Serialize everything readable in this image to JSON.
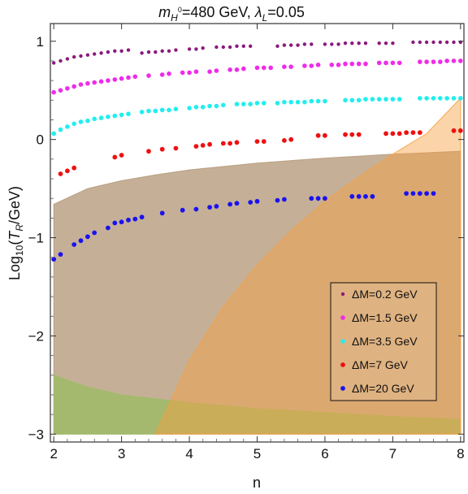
{
  "chart_data": {
    "type": "scatter",
    "title_parts": {
      "m": "m",
      "sub": "H",
      "sup": "0",
      "mid": "=480 GeV, ",
      "lambda": "λ",
      "lsub": "L",
      "end": "=0.05"
    },
    "xlabel": "n",
    "ylabel_parts": {
      "pre": "Log",
      "sub": "10",
      "open": "(",
      "t": "T",
      "tsub": "R",
      "end": "/GeV)"
    },
    "xlim": [
      1.95,
      8.05
    ],
    "ylim": [
      -3.08,
      1.18
    ],
    "xticks": [
      2,
      3,
      4,
      5,
      6,
      7,
      8
    ],
    "yticks": [
      -3,
      -2,
      -1,
      0,
      1
    ],
    "ytick_labels": [
      "−3",
      "−2",
      "−1",
      "0",
      "1"
    ],
    "grid": false,
    "legend_position": "lower-right",
    "regions": [
      {
        "name": "brown band",
        "color": "#b59a7a",
        "opacity": 0.78,
        "upper": [
          [
            2.0,
            -0.66
          ],
          [
            2.5,
            -0.5
          ],
          [
            3.0,
            -0.42
          ],
          [
            3.5,
            -0.36
          ],
          [
            4.0,
            -0.31
          ],
          [
            5.0,
            -0.24
          ],
          [
            6.0,
            -0.19
          ],
          [
            7.0,
            -0.15
          ],
          [
            8.0,
            -0.12
          ]
        ],
        "lower": [
          [
            2.0,
            -3.0
          ],
          [
            8.0,
            -3.0
          ]
        ]
      },
      {
        "name": "green band",
        "color": "#9fbb66",
        "opacity": 0.85,
        "upper": [
          [
            2.0,
            -2.4
          ],
          [
            2.5,
            -2.52
          ],
          [
            3.0,
            -2.6
          ],
          [
            4.0,
            -2.68
          ],
          [
            5.0,
            -2.74
          ],
          [
            6.0,
            -2.78
          ],
          [
            7.0,
            -2.82
          ],
          [
            8.0,
            -2.85
          ]
        ],
        "lower": [
          [
            2.0,
            -3.0
          ],
          [
            8.0,
            -3.0
          ]
        ]
      },
      {
        "name": "orange band",
        "color": "#f7a040",
        "opacity": 0.45,
        "upper": [
          [
            3.5,
            -3.0
          ],
          [
            4.0,
            -2.25
          ],
          [
            4.5,
            -1.7
          ],
          [
            5.0,
            -1.28
          ],
          [
            5.5,
            -0.93
          ],
          [
            6.0,
            -0.63
          ],
          [
            6.5,
            -0.38
          ],
          [
            7.0,
            -0.15
          ],
          [
            7.5,
            0.06
          ],
          [
            8.0,
            0.42
          ]
        ],
        "lower": [
          [
            3.5,
            -3.0
          ],
          [
            8.0,
            -3.0
          ]
        ]
      }
    ],
    "series": [
      {
        "name": "ΔM=0.2 GeV",
        "color": "#8b1a7c",
        "r": 2.2,
        "points": [
          [
            2.0,
            0.78
          ],
          [
            2.1,
            0.8
          ],
          [
            2.2,
            0.82
          ],
          [
            2.3,
            0.84
          ],
          [
            2.4,
            0.85
          ],
          [
            2.5,
            0.86
          ],
          [
            2.6,
            0.87
          ],
          [
            2.7,
            0.88
          ],
          [
            2.8,
            0.89
          ],
          [
            2.9,
            0.9
          ],
          [
            3.0,
            0.9
          ],
          [
            3.1,
            0.91
          ],
          [
            3.3,
            0.88
          ],
          [
            3.4,
            0.89
          ],
          [
            3.5,
            0.89
          ],
          [
            3.6,
            0.9
          ],
          [
            3.7,
            0.9
          ],
          [
            3.8,
            0.91
          ],
          [
            4.0,
            0.92
          ],
          [
            4.1,
            0.92
          ],
          [
            4.2,
            0.93
          ],
          [
            4.4,
            0.94
          ],
          [
            4.5,
            0.94
          ],
          [
            4.6,
            0.94
          ],
          [
            4.7,
            0.95
          ],
          [
            4.8,
            0.95
          ],
          [
            4.9,
            0.95
          ],
          [
            5.3,
            0.95
          ],
          [
            5.4,
            0.96
          ],
          [
            5.5,
            0.96
          ],
          [
            5.6,
            0.96
          ],
          [
            5.7,
            0.97
          ],
          [
            5.8,
            0.97
          ],
          [
            6.0,
            0.97
          ],
          [
            6.1,
            0.97
          ],
          [
            6.2,
            0.97
          ],
          [
            6.3,
            0.98
          ],
          [
            6.4,
            0.98
          ],
          [
            6.5,
            0.98
          ],
          [
            6.6,
            0.98
          ],
          [
            6.8,
            0.98
          ],
          [
            6.9,
            0.98
          ],
          [
            7.0,
            0.98
          ],
          [
            7.3,
            0.99
          ],
          [
            7.4,
            0.99
          ],
          [
            7.5,
            0.99
          ],
          [
            7.6,
            0.99
          ],
          [
            7.7,
            0.99
          ],
          [
            7.8,
            0.99
          ],
          [
            7.9,
            0.99
          ],
          [
            8.0,
            0.99
          ]
        ]
      },
      {
        "name": "ΔM=1.5 GeV",
        "color": "#ee2ce8",
        "r": 2.8,
        "points": [
          [
            2.0,
            0.48
          ],
          [
            2.1,
            0.5
          ],
          [
            2.2,
            0.52
          ],
          [
            2.3,
            0.54
          ],
          [
            2.4,
            0.56
          ],
          [
            2.5,
            0.57
          ],
          [
            2.6,
            0.58
          ],
          [
            2.7,
            0.59
          ],
          [
            2.8,
            0.6
          ],
          [
            2.9,
            0.61
          ],
          [
            3.0,
            0.62
          ],
          [
            3.1,
            0.63
          ],
          [
            3.2,
            0.64
          ],
          [
            3.4,
            0.65
          ],
          [
            3.6,
            0.66
          ],
          [
            3.7,
            0.67
          ],
          [
            3.9,
            0.68
          ],
          [
            4.0,
            0.68
          ],
          [
            4.1,
            0.69
          ],
          [
            4.3,
            0.69
          ],
          [
            4.4,
            0.7
          ],
          [
            4.6,
            0.71
          ],
          [
            4.7,
            0.71
          ],
          [
            4.8,
            0.72
          ],
          [
            5.0,
            0.73
          ],
          [
            5.1,
            0.73
          ],
          [
            5.2,
            0.73
          ],
          [
            5.4,
            0.74
          ],
          [
            5.5,
            0.74
          ],
          [
            5.7,
            0.75
          ],
          [
            5.8,
            0.75
          ],
          [
            5.9,
            0.76
          ],
          [
            6.1,
            0.76
          ],
          [
            6.2,
            0.76
          ],
          [
            6.3,
            0.77
          ],
          [
            6.4,
            0.77
          ],
          [
            6.5,
            0.77
          ],
          [
            6.6,
            0.77
          ],
          [
            6.8,
            0.78
          ],
          [
            6.9,
            0.78
          ],
          [
            7.0,
            0.78
          ],
          [
            7.1,
            0.78
          ],
          [
            7.4,
            0.79
          ],
          [
            7.5,
            0.79
          ],
          [
            7.6,
            0.79
          ],
          [
            7.7,
            0.79
          ],
          [
            7.8,
            0.8
          ],
          [
            7.9,
            0.8
          ],
          [
            8.0,
            0.8
          ]
        ]
      },
      {
        "name": "ΔM=3.5 GeV",
        "color": "#22eeee",
        "r": 2.8,
        "points": [
          [
            2.0,
            0.06
          ],
          [
            2.1,
            0.1
          ],
          [
            2.2,
            0.13
          ],
          [
            2.3,
            0.16
          ],
          [
            2.4,
            0.18
          ],
          [
            2.5,
            0.19
          ],
          [
            2.6,
            0.21
          ],
          [
            2.7,
            0.22
          ],
          [
            2.8,
            0.23
          ],
          [
            2.9,
            0.24
          ],
          [
            3.0,
            0.25
          ],
          [
            3.1,
            0.26
          ],
          [
            3.3,
            0.28
          ],
          [
            3.4,
            0.29
          ],
          [
            3.5,
            0.29
          ],
          [
            3.6,
            0.3
          ],
          [
            3.7,
            0.3
          ],
          [
            3.8,
            0.31
          ],
          [
            4.0,
            0.32
          ],
          [
            4.1,
            0.33
          ],
          [
            4.2,
            0.33
          ],
          [
            4.3,
            0.34
          ],
          [
            4.4,
            0.34
          ],
          [
            4.5,
            0.35
          ],
          [
            4.7,
            0.36
          ],
          [
            4.8,
            0.36
          ],
          [
            4.9,
            0.36
          ],
          [
            5.0,
            0.37
          ],
          [
            5.1,
            0.37
          ],
          [
            5.3,
            0.37
          ],
          [
            5.4,
            0.38
          ],
          [
            5.5,
            0.38
          ],
          [
            5.6,
            0.38
          ],
          [
            5.7,
            0.38
          ],
          [
            5.8,
            0.39
          ],
          [
            5.9,
            0.39
          ],
          [
            6.0,
            0.39
          ],
          [
            6.3,
            0.4
          ],
          [
            6.4,
            0.4
          ],
          [
            6.5,
            0.4
          ],
          [
            6.6,
            0.41
          ],
          [
            6.7,
            0.41
          ],
          [
            6.8,
            0.41
          ],
          [
            6.9,
            0.41
          ],
          [
            7.0,
            0.41
          ],
          [
            7.1,
            0.41
          ],
          [
            7.4,
            0.42
          ],
          [
            7.5,
            0.42
          ],
          [
            7.6,
            0.42
          ],
          [
            7.7,
            0.42
          ],
          [
            7.8,
            0.42
          ],
          [
            7.9,
            0.42
          ],
          [
            8.0,
            0.42
          ]
        ]
      },
      {
        "name": "ΔM=7 GeV",
        "color": "#ee1111",
        "r": 2.9,
        "points": [
          [
            2.1,
            -0.35
          ],
          [
            2.2,
            -0.32
          ],
          [
            2.3,
            -0.29
          ],
          [
            2.9,
            -0.18
          ],
          [
            3.0,
            -0.16
          ],
          [
            3.4,
            -0.12
          ],
          [
            3.6,
            -0.1
          ],
          [
            3.8,
            -0.09
          ],
          [
            4.1,
            -0.07
          ],
          [
            4.2,
            -0.06
          ],
          [
            4.3,
            -0.05
          ],
          [
            4.5,
            -0.04
          ],
          [
            4.6,
            -0.04
          ],
          [
            4.7,
            -0.03
          ],
          [
            5.0,
            -0.02
          ],
          [
            5.1,
            -0.02
          ],
          [
            5.4,
            -0.01
          ],
          [
            5.5,
            0.0
          ],
          [
            5.9,
            0.04
          ],
          [
            6.0,
            0.04
          ],
          [
            6.3,
            0.05
          ],
          [
            6.4,
            0.05
          ],
          [
            6.5,
            0.05
          ],
          [
            6.9,
            0.06
          ],
          [
            7.0,
            0.06
          ],
          [
            7.1,
            0.06
          ],
          [
            7.2,
            0.07
          ],
          [
            7.3,
            0.07
          ],
          [
            7.4,
            0.07
          ],
          [
            7.9,
            0.09
          ],
          [
            8.0,
            0.09
          ]
        ]
      },
      {
        "name": "ΔM=20 GeV",
        "color": "#1a12ee",
        "r": 2.9,
        "points": [
          [
            2.0,
            -1.22
          ],
          [
            2.1,
            -1.17
          ],
          [
            2.3,
            -1.07
          ],
          [
            2.4,
            -1.03
          ],
          [
            2.5,
            -0.99
          ],
          [
            2.6,
            -0.95
          ],
          [
            2.8,
            -0.9
          ],
          [
            2.9,
            -0.85
          ],
          [
            3.0,
            -0.84
          ],
          [
            3.1,
            -0.82
          ],
          [
            3.2,
            -0.81
          ],
          [
            3.3,
            -0.79
          ],
          [
            3.6,
            -0.75
          ],
          [
            3.9,
            -0.72
          ],
          [
            4.1,
            -0.71
          ],
          [
            4.3,
            -0.69
          ],
          [
            4.4,
            -0.68
          ],
          [
            4.6,
            -0.66
          ],
          [
            4.7,
            -0.65
          ],
          [
            4.9,
            -0.64
          ],
          [
            5.0,
            -0.63
          ],
          [
            5.3,
            -0.62
          ],
          [
            5.4,
            -0.61
          ],
          [
            5.8,
            -0.6
          ],
          [
            5.9,
            -0.6
          ],
          [
            6.0,
            -0.6
          ],
          [
            6.4,
            -0.58
          ],
          [
            6.5,
            -0.58
          ],
          [
            6.6,
            -0.58
          ],
          [
            6.7,
            -0.58
          ],
          [
            7.2,
            -0.55
          ],
          [
            7.3,
            -0.55
          ],
          [
            7.4,
            -0.55
          ],
          [
            7.5,
            -0.55
          ],
          [
            7.6,
            -0.55
          ]
        ]
      }
    ]
  }
}
